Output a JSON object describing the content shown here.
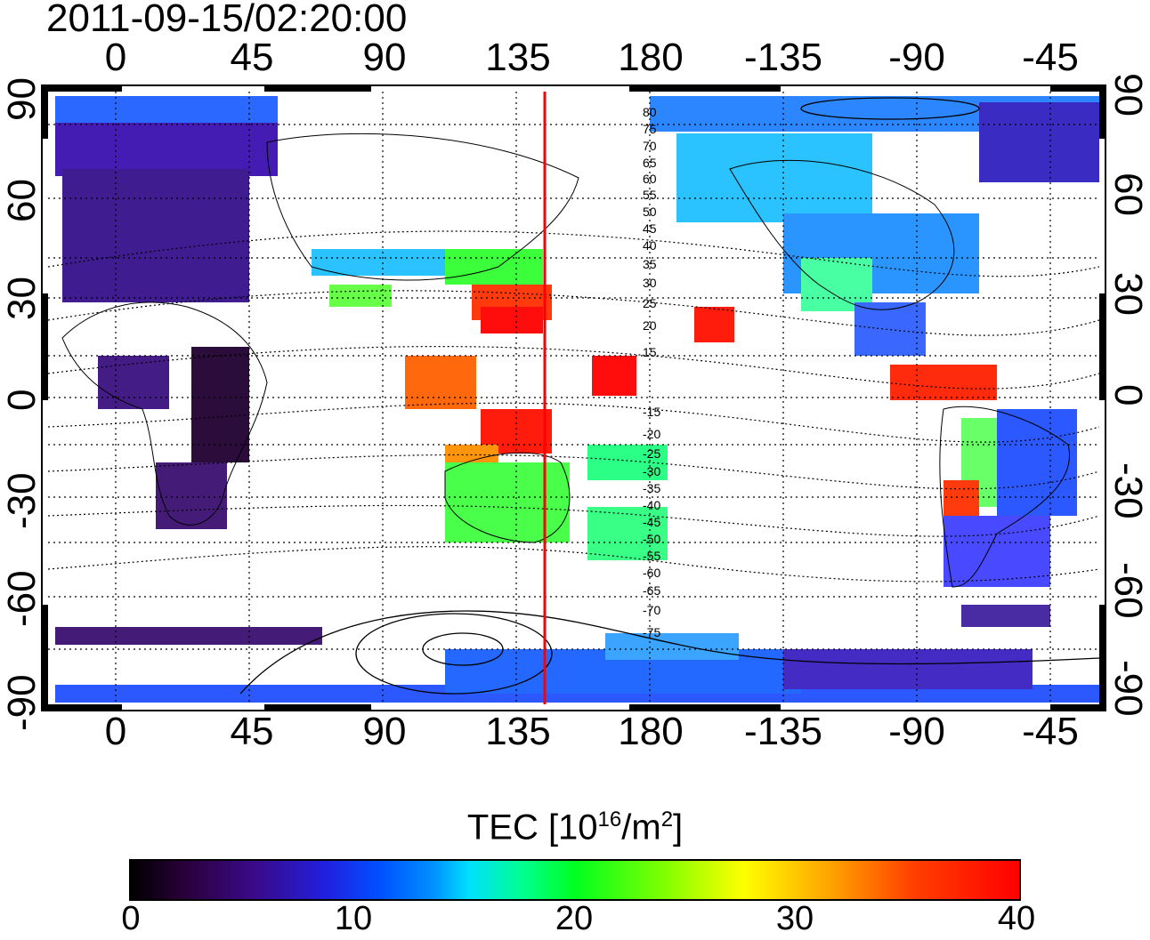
{
  "timestamp": "2011-09-15/02:20:00",
  "map": {
    "type": "world TEC map",
    "lon_ticks_top": [
      "0",
      "45",
      "90",
      "135",
      "180",
      "-135",
      "-90",
      "-45"
    ],
    "lon_ticks_bottom": [
      "0",
      "45",
      "90",
      "135",
      "180",
      "-135",
      "-90",
      "-45"
    ],
    "lat_ticks_left": [
      "90",
      "60",
      "30",
      "0",
      "-30",
      "-60",
      "-90"
    ],
    "lat_ticks_right": [
      "90",
      "60",
      "30",
      "0",
      "-30",
      "-60",
      "-90"
    ],
    "grid": "dotted",
    "red_meridian_longitude": 143,
    "magnetic_latitude_labels": [
      "80",
      "75",
      "70",
      "65",
      "60",
      "55",
      "50",
      "45",
      "40",
      "35",
      "30",
      "25",
      "20",
      "15",
      "-15",
      "-20",
      "-25",
      "-30",
      "-35",
      "-40",
      "-45",
      "-50",
      "-55",
      "-60",
      "-65",
      "-70",
      "-75"
    ],
    "colors": {
      "red_line": "#ff0000",
      "contour": "#000000"
    }
  },
  "colorbar": {
    "title_main": "TEC  [10",
    "title_sup1": "16",
    "title_mid": "/m",
    "title_sup2": "2",
    "title_end": "]",
    "ticks": [
      "0",
      "10",
      "20",
      "30",
      "40"
    ],
    "range": [
      0,
      40
    ],
    "colormap": "jet-like (black-purple-blue-cyan-green-yellow-red)"
  }
}
